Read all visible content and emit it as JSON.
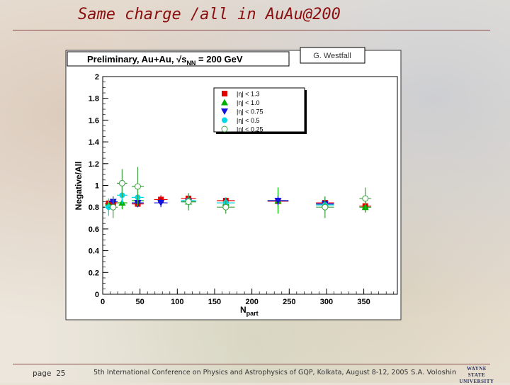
{
  "slide": {
    "title": "Same charge /all in AuAu@200",
    "page": "page  25",
    "conference": "5th International Conference on Physics and Astrophysics of GQP, Kolkata, August 8-12, 2005",
    "author": "S.A. Voloshin",
    "logo_text": [
      "WAYNE STATE",
      "UNIVERSITY"
    ]
  },
  "chart_data": {
    "type": "scatter",
    "title": "Preliminary, Au+Au, √s_NN = 200 GeV",
    "annotation": "G. Westfall",
    "xlabel": "N_part",
    "ylabel": "Negative/All",
    "xlim": [
      0,
      395
    ],
    "ylim": [
      0,
      2
    ],
    "xticks": [
      0,
      50,
      100,
      150,
      200,
      250,
      300,
      350
    ],
    "yticks": [
      0,
      0.2,
      0.4,
      0.6,
      0.8,
      1,
      1.2,
      1.4,
      1.6,
      1.8,
      2
    ],
    "grid": false,
    "legend_position": "top-right",
    "series": [
      {
        "name": "|η| < 1.3",
        "marker": "square",
        "color": "#e00000",
        "points": [
          {
            "x": 8,
            "y": 0.835,
            "xerr": 5,
            "yerr": 0.03
          },
          {
            "x": 14,
            "y": 0.84,
            "xerr": 6,
            "yerr": 0.03
          },
          {
            "x": 47,
            "y": 0.83,
            "xerr": 8,
            "yerr": 0.03
          },
          {
            "x": 78,
            "y": 0.87,
            "xerr": 9,
            "yerr": 0.04
          },
          {
            "x": 115,
            "y": 0.88,
            "xerr": 10,
            "yerr": 0.04
          },
          {
            "x": 165,
            "y": 0.86,
            "xerr": 12,
            "yerr": 0.03
          },
          {
            "x": 235,
            "y": 0.855,
            "xerr": 14,
            "yerr": 0.05
          },
          {
            "x": 298,
            "y": 0.84,
            "xerr": 12,
            "yerr": 0.04
          },
          {
            "x": 352,
            "y": 0.81,
            "xerr": 8,
            "yerr": 0.04
          }
        ]
      },
      {
        "name": "|η| < 1.0",
        "marker": "triangle-up",
        "color": "#00b000",
        "points": [
          {
            "x": 8,
            "y": 0.82,
            "xerr": 5,
            "yerr": 0.06
          },
          {
            "x": 26,
            "y": 0.84,
            "xerr": 7,
            "yerr": 0.06
          },
          {
            "x": 47,
            "y": 0.86,
            "xerr": 8,
            "yerr": 0.06
          },
          {
            "x": 115,
            "y": 0.85,
            "xerr": 10,
            "yerr": 0.05
          },
          {
            "x": 165,
            "y": 0.84,
            "xerr": 12,
            "yerr": 0.05
          },
          {
            "x": 235,
            "y": 0.86,
            "xerr": 14,
            "yerr": 0.12
          },
          {
            "x": 298,
            "y": 0.83,
            "xerr": 12,
            "yerr": 0.06
          },
          {
            "x": 352,
            "y": 0.8,
            "xerr": 8,
            "yerr": 0.05
          }
        ]
      },
      {
        "name": "|η| < 0.75",
        "marker": "triangle-down",
        "color": "#1010e0",
        "points": [
          {
            "x": 14,
            "y": 0.85,
            "xerr": 6,
            "yerr": 0.05
          },
          {
            "x": 47,
            "y": 0.84,
            "xerr": 8,
            "yerr": 0.04
          },
          {
            "x": 78,
            "y": 0.84,
            "xerr": 9,
            "yerr": 0.04
          },
          {
            "x": 115,
            "y": 0.85,
            "xerr": 10,
            "yerr": 0.04
          },
          {
            "x": 235,
            "y": 0.86,
            "xerr": 14,
            "yerr": 0.04
          },
          {
            "x": 298,
            "y": 0.83,
            "xerr": 12,
            "yerr": 0.05
          }
        ]
      },
      {
        "name": "|η| < 0.5",
        "marker": "circle",
        "color": "#00d8e8",
        "points": [
          {
            "x": 8,
            "y": 0.8,
            "xerr": 5,
            "yerr": 0.08
          },
          {
            "x": 26,
            "y": 0.91,
            "xerr": 7,
            "yerr": 0.08
          },
          {
            "x": 47,
            "y": 0.89,
            "xerr": 8,
            "yerr": 0.07
          },
          {
            "x": 115,
            "y": 0.86,
            "xerr": 10,
            "yerr": 0.06
          },
          {
            "x": 165,
            "y": 0.84,
            "xerr": 12,
            "yerr": 0.05
          },
          {
            "x": 298,
            "y": 0.82,
            "xerr": 12,
            "yerr": 0.06
          }
        ]
      },
      {
        "name": "|η| < 0.25",
        "marker": "circle-open",
        "color": "#40a040",
        "points": [
          {
            "x": 14,
            "y": 0.8,
            "xerr": 6,
            "yerr": 0.1
          },
          {
            "x": 26,
            "y": 1.02,
            "xerr": 7,
            "yerr": 0.13
          },
          {
            "x": 47,
            "y": 0.99,
            "xerr": 8,
            "yerr": 0.18
          },
          {
            "x": 115,
            "y": 0.85,
            "xerr": 10,
            "yerr": 0.08
          },
          {
            "x": 165,
            "y": 0.8,
            "xerr": 12,
            "yerr": 0.06
          },
          {
            "x": 298,
            "y": 0.8,
            "xerr": 12,
            "yerr": 0.1
          },
          {
            "x": 352,
            "y": 0.88,
            "xerr": 8,
            "yerr": 0.1
          }
        ]
      }
    ]
  }
}
